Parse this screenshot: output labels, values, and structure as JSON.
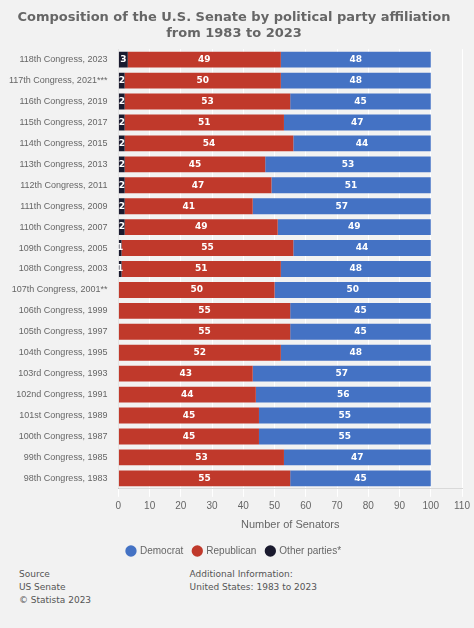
{
  "chart_data": {
    "type": "bar",
    "orientation": "horizontal",
    "stacked": true,
    "data_labels": true,
    "grid": true,
    "legend": "bottom",
    "title": "Composition of the U.S. Senate by political party affiliation from 1983 to 2023",
    "xlabel": "Number of Senators",
    "categories": [
      "118th Congress, 2023",
      "117th Congress, 2021***",
      "116th Congress, 2019",
      "115th Congress, 2017",
      "114th Congress, 2015",
      "113th Congress, 2013",
      "112th Congress, 2011",
      "111th Congress, 2009",
      "110th Congress, 2007",
      "109th Congress, 2005",
      "108th Congress, 2003",
      "107th Congress, 2001**",
      "106th Congress, 1999",
      "105th Congress, 1997",
      "104th Congress, 1995",
      "103rd Congress, 1993",
      "102nd Congress, 1991",
      "101st Congress, 1989",
      "100th Congress, 1987",
      "99th Congress, 1985",
      "98th Congress, 1983"
    ],
    "series": [
      {
        "name": "Other parties*",
        "color": "#1a1a2e",
        "values": [
          3,
          2,
          2,
          2,
          2,
          2,
          2,
          2,
          2,
          1,
          1,
          0,
          0,
          0,
          0,
          0,
          0,
          0,
          0,
          0,
          0
        ]
      },
      {
        "name": "Republican",
        "color": "#c0392b",
        "values": [
          49,
          50,
          53,
          51,
          54,
          45,
          47,
          41,
          49,
          55,
          51,
          50,
          55,
          55,
          52,
          43,
          44,
          45,
          45,
          53,
          55
        ]
      },
      {
        "name": "Democrat",
        "color": "#4472c4",
        "values": [
          48,
          48,
          45,
          47,
          44,
          53,
          51,
          57,
          49,
          44,
          48,
          50,
          45,
          45,
          48,
          57,
          56,
          55,
          55,
          47,
          45
        ]
      }
    ],
    "xlim": [
      0,
      110
    ],
    "xticks": [
      0,
      10,
      20,
      30,
      40,
      50,
      60,
      70,
      80,
      90,
      100,
      110
    ],
    "annotations": [
      "Source\nUS Senate\n© Statista 2023",
      "Additional Information:\nUnited States: 1983 to 2023"
    ]
  }
}
